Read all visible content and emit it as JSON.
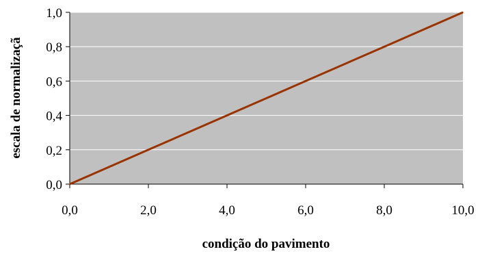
{
  "chart_data": {
    "type": "line",
    "title": "",
    "xlabel": "condição do pavimento",
    "ylabel": "escala de normalizaçã",
    "xlim": [
      0,
      10
    ],
    "ylim": [
      0,
      1
    ],
    "x_ticks": [
      0,
      2,
      4,
      6,
      8,
      10
    ],
    "y_ticks": [
      0,
      0.2,
      0.4,
      0.6,
      0.8,
      1.0
    ],
    "x_tick_labels": [
      "0,0",
      "2,0",
      "4,0",
      "6,0",
      "8,0",
      "10,0"
    ],
    "y_tick_labels": [
      "0,0",
      "0,2",
      "0,4",
      "0,6",
      "0,8",
      "1,0"
    ],
    "grid": true,
    "legend": "none",
    "series": [
      {
        "x": [
          0,
          2,
          4,
          6,
          8,
          10
        ],
        "y": [
          0,
          0.2,
          0.4,
          0.6,
          0.8,
          1.0
        ]
      }
    ],
    "colors": {
      "plot_background": "#c0c0c0",
      "gridline": "#ffffff",
      "line": "#993300",
      "axis": "#000000"
    }
  }
}
